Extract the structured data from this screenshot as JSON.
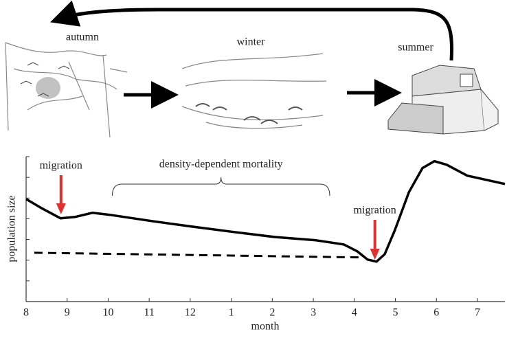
{
  "diagram": {
    "stages": [
      "autumn",
      "winter",
      "summer"
    ]
  },
  "chart_data": {
    "type": "line",
    "x_label": "month",
    "y_label": "population size",
    "xlim": [
      8,
      19.67
    ],
    "ylim": [
      0,
      7
    ],
    "xticks": [
      8,
      9,
      10,
      11,
      12,
      {
        "value": 13,
        "label": "1"
      },
      {
        "value": 14,
        "label": "2"
      },
      {
        "value": 15,
        "label": "3"
      },
      {
        "value": 16,
        "label": "4"
      },
      {
        "value": 17,
        "label": "5"
      },
      {
        "value": 18,
        "label": "6"
      },
      {
        "value": 19,
        "label": "7"
      }
    ],
    "series": [
      {
        "color": "#000000",
        "style": "solid",
        "x": [
          8.0,
          8.37,
          8.84,
          9.2,
          9.62,
          10.04,
          11.05,
          12.05,
          13.06,
          14.06,
          15.07,
          15.74,
          16.07,
          16.32,
          16.54,
          16.74,
          16.99,
          17.33,
          17.66,
          17.95,
          18.25,
          18.75,
          19.67
        ],
        "values": [
          4.95,
          4.52,
          4.02,
          4.09,
          4.29,
          4.19,
          3.89,
          3.62,
          3.36,
          3.12,
          2.96,
          2.76,
          2.43,
          2.03,
          1.93,
          2.29,
          3.46,
          5.28,
          6.45,
          6.78,
          6.61,
          6.08,
          5.68
        ]
      },
      {
        "color": "#000000",
        "style": "dashed",
        "x": [
          8.2,
          16.24
        ],
        "values": [
          2.36,
          2.13
        ]
      }
    ],
    "annotations": [
      {
        "text": "migration",
        "x": 8.85,
        "kind": "arrow"
      },
      {
        "text": "migration",
        "x": 16.5,
        "kind": "arrow"
      },
      {
        "text": "density-dependent mortality",
        "x": [
          10.1,
          15.4
        ],
        "kind": "bracket"
      }
    ]
  }
}
